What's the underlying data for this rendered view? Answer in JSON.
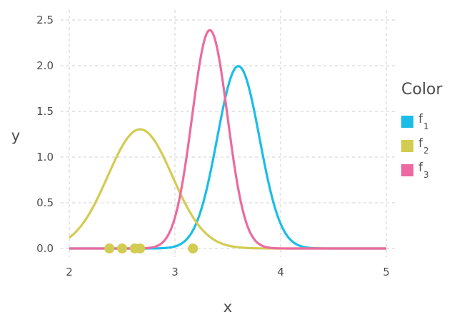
{
  "chart_data": {
    "type": "line",
    "xlabel": "x",
    "ylabel": "y",
    "xlim": [
      2,
      5
    ],
    "ylim": [
      0,
      2.5
    ],
    "x_ticks": [
      "2",
      "3",
      "4",
      "5"
    ],
    "y_ticks": [
      "0.0",
      "0.5",
      "1.0",
      "1.5",
      "2.0",
      "2.5"
    ],
    "grid": true,
    "legend": {
      "title": "Color",
      "placement": "right",
      "entries": [
        {
          "base": "f",
          "sub": "1",
          "color": "#1bbde8"
        },
        {
          "base": "f",
          "sub": "2",
          "color": "#d2cc52"
        },
        {
          "base": "f",
          "sub": "3",
          "color": "#ec6a9f"
        }
      ]
    },
    "series": [
      {
        "name": "f1",
        "color": "#1bbde8",
        "mean": 3.6,
        "sd": 0.2
      },
      {
        "name": "f2",
        "color": "#d2cc52",
        "mean": 2.67,
        "sd": 0.306
      },
      {
        "name": "f3",
        "color": "#ec6a9f",
        "mean": 3.33,
        "sd": 0.167
      }
    ],
    "points": {
      "color": "#d2cc52",
      "x": [
        2.38,
        2.5,
        2.62,
        2.67,
        3.17
      ],
      "y": [
        0,
        0,
        0,
        0,
        0
      ]
    }
  }
}
